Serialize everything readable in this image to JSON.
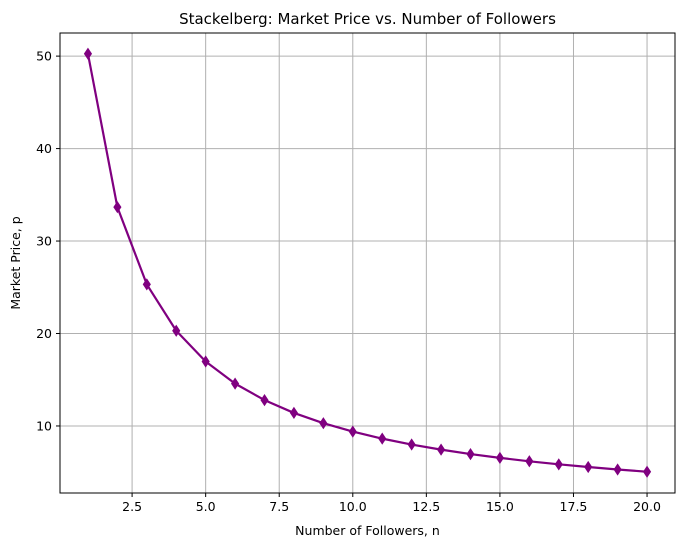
{
  "chart_data": {
    "type": "line",
    "title": "Stackelberg: Market Price vs. Number of Followers",
    "xlabel": "Number of Followers, n",
    "ylabel": "Market Price, p",
    "xlim": [
      0.05,
      20.95
    ],
    "ylim": [
      2.75,
      52.5
    ],
    "xticks": [
      2.5,
      5.0,
      7.5,
      10.0,
      12.5,
      15.0,
      17.5,
      20.0
    ],
    "xtick_labels": [
      "2.5",
      "5.0",
      "7.5",
      "10.0",
      "12.5",
      "15.0",
      "17.5",
      "20.0"
    ],
    "yticks": [
      10,
      20,
      30,
      40,
      50
    ],
    "ytick_labels": [
      "10",
      "20",
      "30",
      "40",
      "50"
    ],
    "grid": true,
    "legend": "none",
    "series": [
      {
        "color": "#800080",
        "marker": "thin-diamond",
        "x": [
          1,
          2,
          3,
          4,
          5,
          6,
          7,
          8,
          9,
          10,
          11,
          12,
          13,
          14,
          15,
          16,
          17,
          18,
          19,
          20
        ],
        "y": [
          50.25,
          33.67,
          25.31,
          20.3,
          16.97,
          14.58,
          12.8,
          11.41,
          10.3,
          9.39,
          8.63,
          7.99,
          7.44,
          6.96,
          6.55,
          6.18,
          5.85,
          5.56,
          5.29,
          5.05
        ]
      }
    ]
  }
}
